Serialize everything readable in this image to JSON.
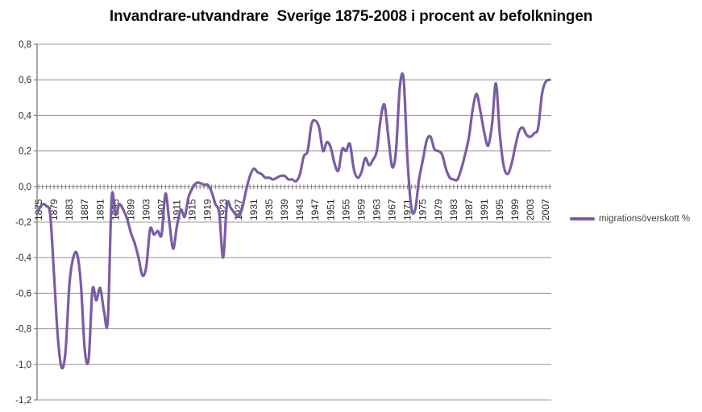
{
  "title": "Invandrare-utvandrare  Sverige 1875-2008 i procent av befolkningen",
  "legend": {
    "label": "migrationsöverskott %"
  },
  "colors": {
    "line": "#7a5da5",
    "grid": "#9b9b9b",
    "axis": "#808080",
    "tick_text": "#262626",
    "legend_text": "#3f3f3f"
  },
  "axes": {
    "y_tick_labels": [
      "0,8",
      "0,6",
      "0,4",
      "0,2",
      "0,0",
      "-0,2",
      "-0,4",
      "-0,6",
      "-0,8",
      "-1,0",
      "-1,2"
    ],
    "y_tick_values": [
      0.8,
      0.6,
      0.4,
      0.2,
      0.0,
      -0.2,
      -0.4,
      -0.6,
      -0.8,
      -1.0,
      -1.2
    ],
    "x_tick_years": [
      1875,
      1879,
      1883,
      1887,
      1891,
      1895,
      1899,
      1903,
      1907,
      1911,
      1915,
      1919,
      1923,
      1927,
      1931,
      1935,
      1939,
      1943,
      1947,
      1951,
      1955,
      1959,
      1963,
      1967,
      1971,
      1975,
      1979,
      1983,
      1987,
      1991,
      1995,
      1999,
      2003,
      2007
    ]
  },
  "chart_data": {
    "type": "line",
    "title": "Invandrare-utvandrare  Sverige 1875-2008 i procent av befolkningen",
    "xlabel": "",
    "ylabel": "",
    "ylim": [
      -1.2,
      0.8
    ],
    "x_start": 1875,
    "x_end": 2008,
    "grid": true,
    "legend_position": "right",
    "series": [
      {
        "name": "migrationsöverskott %",
        "color": "#7a5da5",
        "values": [
          -0.13,
          -0.1,
          -0.11,
          -0.16,
          -0.5,
          -0.85,
          -1.02,
          -0.92,
          -0.55,
          -0.4,
          -0.38,
          -0.55,
          -0.92,
          -0.97,
          -0.58,
          -0.64,
          -0.57,
          -0.7,
          -0.75,
          -0.06,
          -0.16,
          -0.1,
          -0.13,
          -0.18,
          -0.26,
          -0.32,
          -0.4,
          -0.5,
          -0.45,
          -0.24,
          -0.27,
          -0.25,
          -0.27,
          -0.04,
          -0.2,
          -0.35,
          -0.22,
          -0.13,
          -0.17,
          -0.06,
          -0.01,
          0.02,
          0.02,
          0.01,
          0.01,
          -0.03,
          -0.1,
          -0.15,
          -0.4,
          -0.1,
          -0.12,
          -0.15,
          -0.17,
          -0.12,
          -0.02,
          0.06,
          0.1,
          0.08,
          0.07,
          0.05,
          0.05,
          0.04,
          0.05,
          0.06,
          0.06,
          0.04,
          0.04,
          0.03,
          0.07,
          0.17,
          0.2,
          0.35,
          0.37,
          0.33,
          0.2,
          0.25,
          0.22,
          0.13,
          0.09,
          0.21,
          0.2,
          0.24,
          0.1,
          0.05,
          0.08,
          0.16,
          0.12,
          0.15,
          0.2,
          0.38,
          0.46,
          0.28,
          0.11,
          0.2,
          0.56,
          0.6,
          0.15,
          -0.12,
          -0.13,
          0.04,
          0.15,
          0.26,
          0.28,
          0.21,
          0.2,
          0.18,
          0.1,
          0.05,
          0.04,
          0.04,
          0.1,
          0.18,
          0.28,
          0.44,
          0.52,
          0.42,
          0.3,
          0.23,
          0.35,
          0.58,
          0.3,
          0.12,
          0.07,
          0.12,
          0.22,
          0.31,
          0.33,
          0.29,
          0.28,
          0.3,
          0.33,
          0.52,
          0.59,
          0.6
        ]
      }
    ]
  }
}
